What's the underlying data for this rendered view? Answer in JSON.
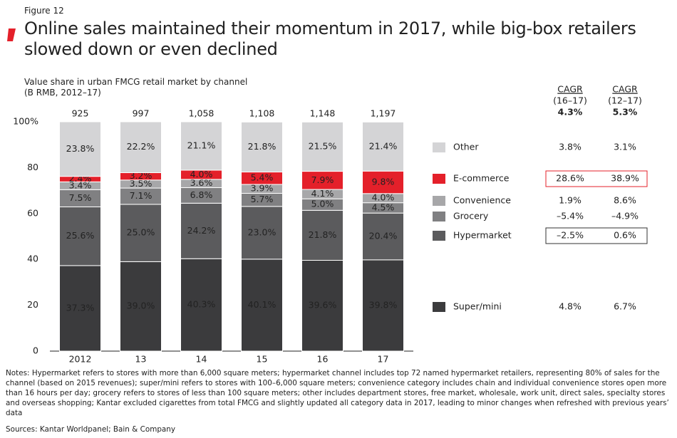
{
  "figure_label": "Figure 12",
  "notes": "Notes: Hypermarket refers to stores with more than 6,000 square meters; hypermarket channel includes top 72 named hypermarket retailers, representing 80% of sales for the channel (based on 2015 revenues); super/mini refers to stores with 100–6,000 square meters; convenience category includes chain and individual convenience stores open more than 16 hours per day; grocery refers to stores of less than 100 square meters; other includes department stores, free market, wholesale, work unit, direct sales, specialty stores and overseas shopping; Kantar excluded cigarettes from total FMCG and slightly updated all category data in 2017, leading to minor changes when refreshed with previous years’ data",
  "sources": "Sources: Kantar Worldpanel; Bain & Company",
  "chart_data": {
    "type": "stacked_bar",
    "title": "Online sales maintained their momentum in 2017, while big-box retailers slowed down or even declined",
    "subtitle": "Value share in urban FMCG retail market by channel (B RMB, 2012–17)",
    "categories": [
      "2012",
      "13",
      "14",
      "15",
      "16",
      "17"
    ],
    "totals": {
      "values": [
        925,
        997,
        1058,
        1108,
        1148,
        1197
      ],
      "value_labels": [
        "925",
        "997",
        "1,058",
        "1,108",
        "1,148",
        "1,197"
      ]
    },
    "ylim": [
      0,
      100
    ],
    "yticks": [
      0,
      20,
      40,
      60,
      80,
      {
        "value": 100,
        "label": "100%"
      }
    ],
    "series": [
      {
        "name": "Super/mini",
        "color": "#3b3b3d",
        "values": [
          37.3,
          39.0,
          40.3,
          40.1,
          39.6,
          39.8
        ],
        "value_labels": [
          "37.3%",
          "39.0%",
          "40.3%",
          "40.1%",
          "39.6%",
          "39.8%"
        ]
      },
      {
        "name": "Hypermarket",
        "color": "#5b5b5d",
        "values": [
          25.6,
          25.0,
          24.2,
          23.0,
          21.8,
          20.4
        ],
        "value_labels": [
          "25.6%",
          "25.0%",
          "24.2%",
          "23.0%",
          "21.8%",
          "20.4%"
        ],
        "cagr_box": "#333333"
      },
      {
        "name": "Grocery",
        "color": "#808082",
        "values": [
          7.5,
          7.1,
          6.8,
          5.7,
          5.0,
          4.5
        ],
        "value_labels": [
          "7.5%",
          "7.1%",
          "6.8%",
          "5.7%",
          "5.0%",
          "4.5%"
        ]
      },
      {
        "name": "Convenience",
        "color": "#a7a7a9",
        "values": [
          3.4,
          3.5,
          3.6,
          3.9,
          4.1,
          4.0
        ],
        "value_labels": [
          "3.4%",
          "3.5%",
          "3.6%",
          "3.9%",
          "4.1%",
          "4.0%"
        ]
      },
      {
        "name": "E-commerce",
        "color": "#e4202a",
        "values": [
          2.4,
          3.2,
          4.0,
          5.4,
          7.9,
          9.8
        ],
        "value_labels": [
          "2.4%",
          "3.2%",
          "4.0%",
          "5.4%",
          "7.9%",
          "9.8%"
        ],
        "cagr_box": "#e4202a"
      },
      {
        "name": "Other",
        "color": "#d4d4d6",
        "values": [
          23.8,
          22.2,
          21.1,
          21.8,
          21.5,
          21.4
        ],
        "value_labels": [
          "23.8%",
          "22.2%",
          "21.1%",
          "21.8%",
          "21.5%",
          "21.4%"
        ]
      }
    ],
    "cagr_table": [
      {
        "title": "CAGR",
        "period": "(16–17)",
        "total": "4.3%",
        "values": [
          "4.8%",
          "–2.5%",
          "–5.4%",
          "1.9%",
          "28.6%",
          "3.8%"
        ]
      },
      {
        "title": "CAGR",
        "period": "(12–17)",
        "total": "5.3%",
        "values": [
          "6.7%",
          "0.6%",
          "–4.9%",
          "8.6%",
          "38.9%",
          "3.1%"
        ]
      }
    ]
  }
}
